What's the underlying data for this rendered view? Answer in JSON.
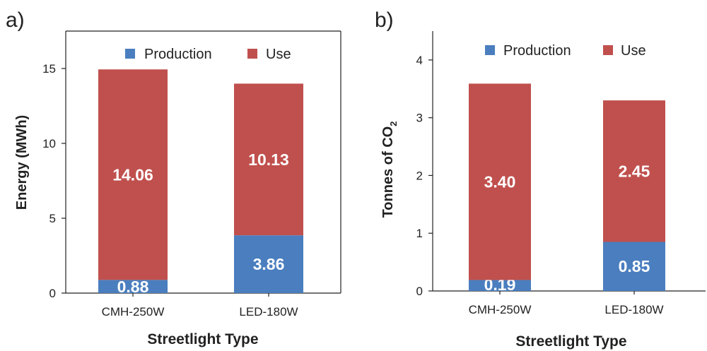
{
  "colors": {
    "production": "#4a7ebf",
    "use": "#c0504d",
    "label": "#ffffff",
    "axis": "#222222"
  },
  "chart_data": [
    {
      "panel_label": "a)",
      "type": "bar",
      "stacked": true,
      "categories": [
        "CMH-250W",
        "LED-180W"
      ],
      "series": [
        {
          "name": "Production",
          "values": [
            0.88,
            3.86
          ],
          "labels": [
            "0.88",
            "3.86"
          ]
        },
        {
          "name": "Use",
          "values": [
            14.06,
            10.13
          ],
          "labels": [
            "14.06",
            "10.13"
          ]
        }
      ],
      "xlabel": "Streetlight Type",
      "ylabel": "Energy (MWh)",
      "ylim": [
        0,
        17.5
      ],
      "yticks": [
        "0",
        "5",
        "10",
        "15"
      ],
      "ytick_values": [
        0,
        5,
        10,
        15
      ],
      "legend_position": "top"
    },
    {
      "panel_label": "b)",
      "type": "bar",
      "stacked": true,
      "categories": [
        "CMH-250W",
        "LED-180W"
      ],
      "series": [
        {
          "name": "Production",
          "values": [
            0.19,
            0.85
          ],
          "labels": [
            "0.19",
            "0.85"
          ]
        },
        {
          "name": "Use",
          "values": [
            3.4,
            2.45
          ],
          "labels": [
            "3.40",
            "2.45"
          ]
        }
      ],
      "xlabel": "Streetlight Type",
      "ylabel": "Tonnes of CO",
      "ylabel_subscript": "2",
      "ylim": [
        0,
        4.5
      ],
      "yticks": [
        "0",
        "1",
        "2",
        "3",
        "4"
      ],
      "ytick_values": [
        0,
        1,
        2,
        3,
        4
      ],
      "legend_position": "top"
    }
  ]
}
